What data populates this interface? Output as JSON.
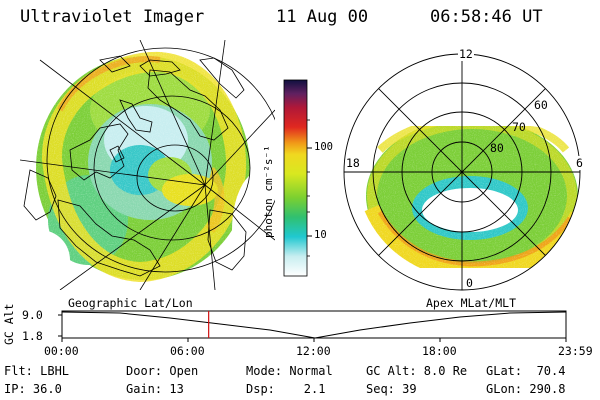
{
  "header": {
    "instrument": "Ultraviolet Imager",
    "date": "11 Aug 00",
    "time": "06:58:46 UT"
  },
  "colorbar": {
    "unit_label": "photon cm⁻²s⁻¹",
    "ticks": [
      "100",
      "10"
    ],
    "scale": "log"
  },
  "geo_panel": {
    "caption": "Geographic Lat/Lon"
  },
  "mlt_panel": {
    "caption": "Apex MLat/MLT",
    "mlt_labels": {
      "top": "12",
      "left": "18",
      "right": "6",
      "bottom": "0"
    },
    "lat_labels": [
      "60",
      "70",
      "80"
    ]
  },
  "timeline": {
    "axis_label": "GC Alt",
    "y_ticks": [
      "9.0",
      "1.8"
    ],
    "x_ticks": [
      "00:00",
      "06:00",
      "12:00",
      "18:00",
      "23:59"
    ],
    "current_time_fraction": 0.291
  },
  "status": {
    "filter": "Flt: LBHL",
    "ip": "IP: 36.0",
    "door": "Door: Open",
    "gain": "Gain: 13",
    "mode": "Mode: Normal",
    "dsp": "Dsp:    2.1",
    "gc_alt": "GC Alt: 8.0 Re",
    "seq": "Seq: 39",
    "glat": "GLat:  70.4",
    "glon": "GLon: 290.8"
  },
  "colors": {
    "aurora_low": "#1fd0c8",
    "aurora_mid": "#8ad030",
    "aurora_high": "#f0e020",
    "aurora_peak": "#f09018",
    "marker": "#d01010"
  }
}
